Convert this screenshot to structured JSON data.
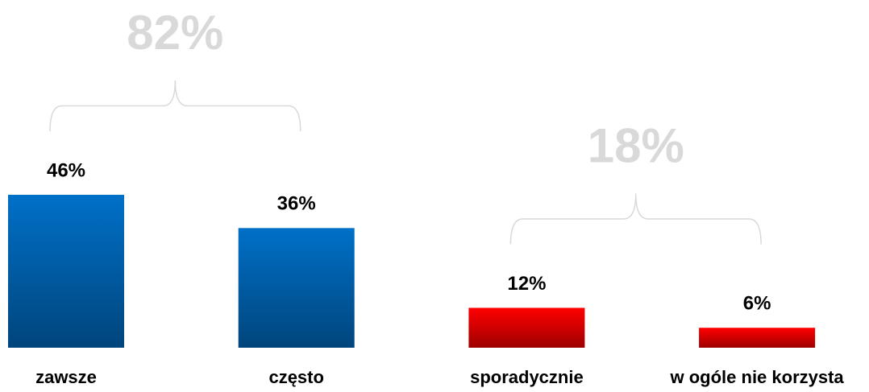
{
  "chart_data": {
    "type": "bar",
    "categories": [
      "zawsze",
      "często",
      "sporadycznie",
      "w ogóle nie korzysta"
    ],
    "values": [
      46,
      36,
      12,
      6
    ],
    "value_labels": [
      "46%",
      "36%",
      "12%",
      "6%"
    ],
    "colors": [
      "#0070c8",
      "#0070c8",
      "#ff0000",
      "#ff0000"
    ],
    "ylim": [
      0,
      100
    ],
    "groups": [
      {
        "label": "82%",
        "members": [
          "zawsze",
          "często"
        ]
      },
      {
        "label": "18%",
        "members": [
          "sporadycznie",
          "w ogóle nie korzysta"
        ]
      }
    ]
  }
}
